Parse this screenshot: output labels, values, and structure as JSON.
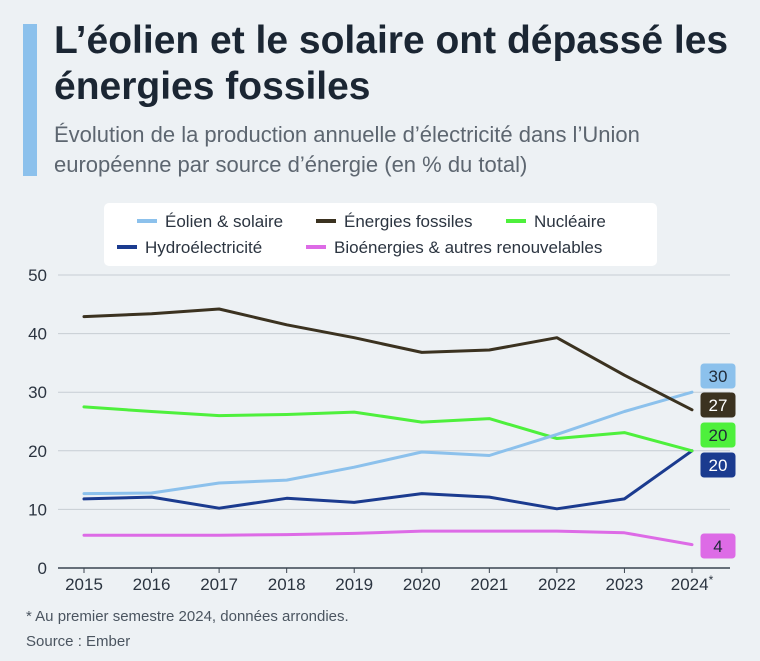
{
  "header": {
    "title": "L’éolien et le solaire ont dépassé les énergies fossiles",
    "subtitle": "Évolution de la production annuelle d’électricité dans l’Union européenne par source d’énergie (en % du total)"
  },
  "footer": {
    "footnote": "* Au premier semestre 2024, données arrondies.",
    "source": "Source : Ember"
  },
  "chart_data": {
    "type": "line",
    "title": "",
    "xlabel": "",
    "ylabel": "",
    "x": [
      "2015",
      "2016",
      "2017",
      "2018",
      "2019",
      "2020",
      "2021",
      "2022",
      "2023",
      "2024*"
    ],
    "ylim": [
      0,
      50
    ],
    "yticks": [
      0,
      10,
      20,
      30,
      40,
      50
    ],
    "grid": true,
    "legend_position": "top",
    "series": [
      {
        "name": "Éolien & solaire",
        "color": "#8cc1ec",
        "end_label_color": "#ffffff",
        "end_label_text": "#1f2a38",
        "end_label": "30",
        "values": [
          12.7,
          12.8,
          14.5,
          15.0,
          17.2,
          19.8,
          19.2,
          22.8,
          26.7,
          30
        ]
      },
      {
        "name": "Énergies fossiles",
        "color": "#3b3220",
        "end_label_color": "#3b3220",
        "end_label_text": "#ffffff",
        "end_label": "27",
        "values": [
          42.9,
          43.4,
          44.2,
          41.5,
          39.3,
          36.8,
          37.2,
          39.3,
          32.9,
          27
        ]
      },
      {
        "name": "Nucléaire",
        "color": "#4ef03c",
        "end_label_color": "#4ef03c",
        "end_label_text": "#1f2a38",
        "end_label": "20",
        "values": [
          27.5,
          26.7,
          26.0,
          26.2,
          26.6,
          24.9,
          25.5,
          22.1,
          23.1,
          20
        ]
      },
      {
        "name": "Hydroélectricité",
        "color": "#1b3b8f",
        "end_label_color": "#1b3b8f",
        "end_label_text": "#ffffff",
        "end_label": "20",
        "values": [
          11.8,
          12.1,
          10.2,
          11.9,
          11.2,
          12.7,
          12.1,
          10.1,
          11.8,
          20
        ]
      },
      {
        "name": "Bioénergies & autres renouvelables",
        "color": "#dd6be6",
        "end_label_color": "#dd6be6",
        "end_label_text": "#1f2a38",
        "end_label": "4",
        "values": [
          5.6,
          5.6,
          5.6,
          5.7,
          5.9,
          6.3,
          6.3,
          6.3,
          6.0,
          4
        ]
      }
    ]
  }
}
